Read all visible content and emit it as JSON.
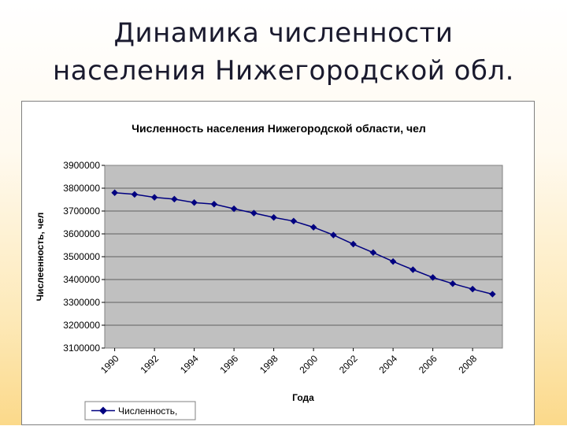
{
  "slide": {
    "title_line1": "Динамика численности",
    "title_line2": "населения Нижегородской обл."
  },
  "chart_data": {
    "type": "line",
    "title": "Численность населения Нижегородской области, чел",
    "xlabel": "Года",
    "ylabel": "Числеенность, чел",
    "x": [
      1990,
      1991,
      1992,
      1993,
      1994,
      1995,
      1996,
      1997,
      1998,
      1999,
      2000,
      2001,
      2002,
      2003,
      2004,
      2005,
      2006,
      2007,
      2008,
      2009
    ],
    "x_tick_labels": [
      "1990",
      "1992",
      "1994",
      "1996",
      "1998",
      "2000",
      "2002",
      "2004",
      "2006",
      "2008"
    ],
    "ylim": [
      3100000,
      3900000
    ],
    "y_tick_labels": [
      "3100000",
      "3200000",
      "3300000",
      "3400000",
      "3500000",
      "3600000",
      "3700000",
      "3800000",
      "3900000"
    ],
    "series": [
      {
        "name": "Численность,",
        "values": [
          3780000,
          3773000,
          3760000,
          3752000,
          3737000,
          3730000,
          3710000,
          3691000,
          3672000,
          3656000,
          3629000,
          3595000,
          3555000,
          3518000,
          3479000,
          3443000,
          3409000,
          3382000,
          3358000,
          3336000
        ]
      }
    ],
    "grid": true,
    "plot_background": "#c0c0c0",
    "line_color": "#000080",
    "legend_position": "bottom-left"
  }
}
